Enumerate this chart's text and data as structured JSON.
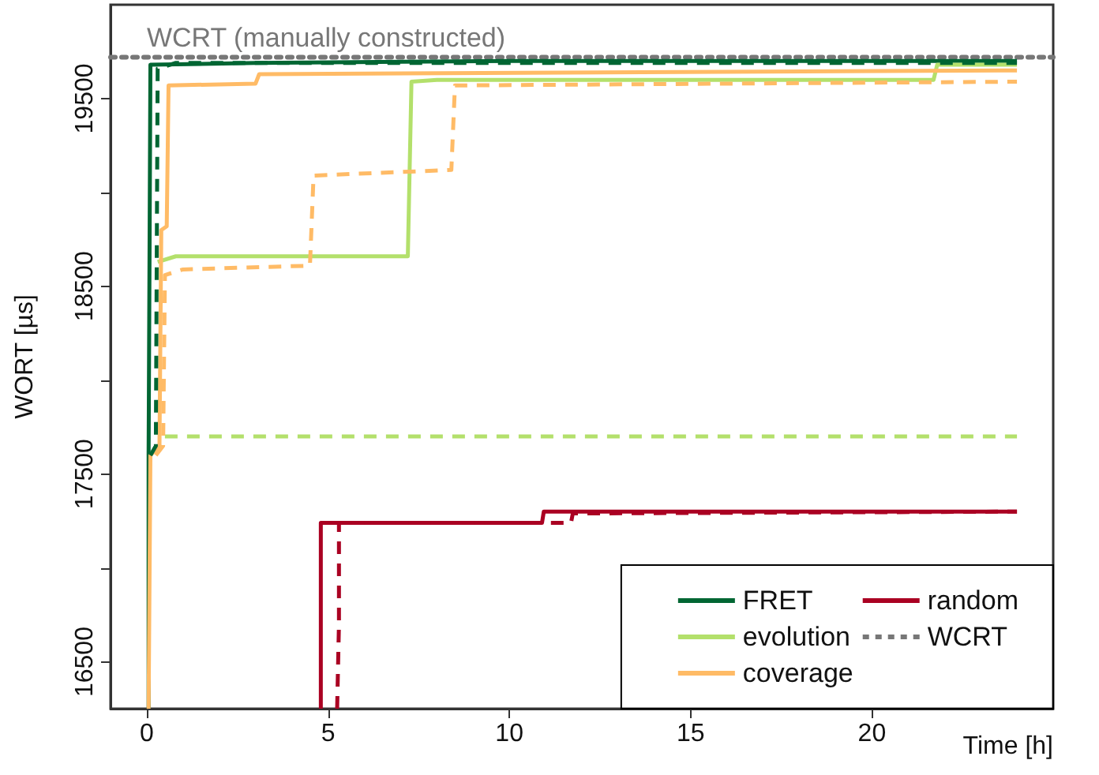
{
  "chart_data": {
    "type": "line",
    "xlabel": "Time [h]",
    "ylabel": "WORT [µs]",
    "xlim": [
      -1,
      25
    ],
    "xticks": [
      0,
      5,
      10,
      15,
      20
    ],
    "ylim": [
      16250,
      20000
    ],
    "yticks": [
      16500,
      {
        "value": 17000,
        "label": null
      },
      17500,
      {
        "value": 18000,
        "label": null
      },
      18500,
      {
        "value": 19000,
        "label": null
      },
      19500
    ],
    "legend": "bottom right",
    "grid": false,
    "marker": "none",
    "annotations": [
      {
        "text": "WCRT (manually constructed)",
        "x": 0,
        "y": 19720
      }
    ],
    "series": [
      {
        "name": "FRET",
        "color": "#006633",
        "line_style": "solid",
        "x": [
          0.05,
          0.05,
          0.1,
          3,
          10,
          24
        ],
        "values": [
          16250,
          17600,
          19680,
          19690,
          19700,
          19700
        ]
      },
      {
        "name": "evolution",
        "color": "#b3e06b",
        "line_style": "solid",
        "x": [
          0.3,
          0.8,
          7.2,
          7.3,
          8,
          21.7,
          21.8,
          24
        ],
        "values": [
          18630,
          18660,
          18660,
          19590,
          19600,
          19600,
          19680,
          19680
        ]
      },
      {
        "name": "coverage",
        "color": "#ffbb66",
        "line_style": "solid",
        "x": [
          0.05,
          0.1,
          0.35,
          0.4,
          0.55,
          0.6,
          3,
          3.1,
          24
        ],
        "values": [
          16250,
          17600,
          17650,
          18800,
          18820,
          19570,
          19580,
          19630,
          19650
        ]
      },
      {
        "name": "random",
        "color": "#aa0022",
        "line_style": "solid",
        "x": [
          4.8,
          4.8,
          10.9,
          10.95,
          24
        ],
        "values": [
          16250,
          17240,
          17240,
          17300,
          17300
        ]
      },
      {
        "name": "WCRT",
        "color": "#777777",
        "line_style": "dotted",
        "x": [
          -1,
          25
        ],
        "values": [
          19720,
          19720
        ]
      },
      {
        "color": "#006633",
        "line_style": "dashed",
        "x": [
          0.1,
          0.25,
          0.3,
          0.8,
          24
        ],
        "values": [
          17600,
          17650,
          19660,
          19690,
          19690
        ]
      },
      {
        "color": "#b3e06b",
        "line_style": "dashed",
        "x": [
          0.5,
          24
        ],
        "values": [
          17700,
          17700
        ]
      },
      {
        "color": "#ffbb66",
        "line_style": "dashed",
        "x": [
          0.25,
          0.45,
          0.5,
          1,
          4.5,
          4.6,
          8.4,
          8.5,
          24
        ],
        "values": [
          17600,
          17650,
          18560,
          18590,
          18610,
          19090,
          19120,
          19570,
          19590
        ]
      },
      {
        "color": "#aa0022",
        "line_style": "dashed",
        "x": [
          5.25,
          5.3,
          5.3,
          11.7,
          11.75,
          24
        ],
        "values": [
          16250,
          16700,
          17240,
          17240,
          17290,
          17300
        ]
      }
    ]
  }
}
